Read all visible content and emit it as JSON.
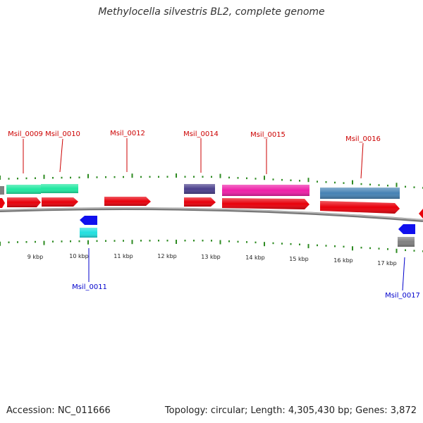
{
  "title": "Methylocella silvestris BL2, complete genome",
  "footer": {
    "accession": "Accession: NC_011666",
    "summary": "Topology: circular; Length: 4,305,430 bp; Genes: 3,872"
  },
  "colors": {
    "cds": "#e8000b",
    "label_top": "#cc0000",
    "label_bottom": "#0000cc",
    "tick": "#2e8b22",
    "backbone": "#8a8a8a",
    "teal": "#1fe8a0",
    "navy": "#4a3f8c",
    "magenta": "#ee1fa8",
    "steel": "#4682b4",
    "cyan": "#20e0e0",
    "blue": "#1010ee",
    "gray": "#808080"
  },
  "scale_labels": [
    "9 kbp",
    "10 kbp",
    "11 kbp",
    "12 kbp",
    "13 kbp",
    "14 kbp",
    "15 kbp",
    "16 kbp",
    "17 kbp"
  ],
  "top_genes": [
    {
      "label": "Msil_0009"
    },
    {
      "label": "Msil_0010"
    },
    {
      "label": "Msil_0012"
    },
    {
      "label": "Msil_0014"
    },
    {
      "label": "Msil_0015"
    },
    {
      "label": "Msil_0016"
    }
  ],
  "bottom_genes": [
    {
      "label": "Msil_0011"
    },
    {
      "label": "Msil_0017"
    }
  ]
}
